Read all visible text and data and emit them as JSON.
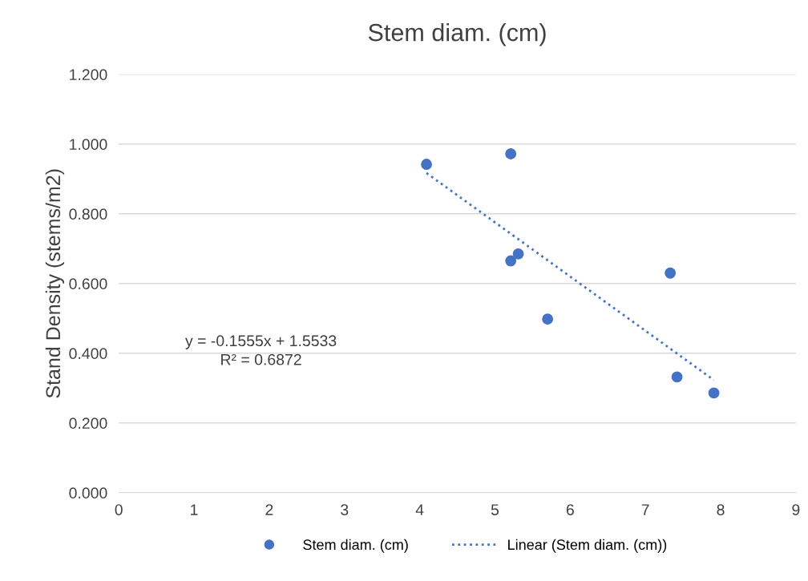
{
  "chart_data": {
    "type": "scatter",
    "title": "Stem diam. (cm)",
    "ylabel": "Stand Density (stems/m2)",
    "series": [
      {
        "name": "Stem diam. (cm)",
        "color": "#4472c4",
        "marker": "circle",
        "x": [
          4.09,
          5.21,
          5.21,
          5.31,
          5.7,
          7.33,
          7.42,
          7.91
        ],
        "values": [
          0.942,
          0.972,
          0.665,
          0.685,
          0.498,
          0.63,
          0.332,
          0.286
        ]
      },
      {
        "name": "Linear (Stem diam. (cm))",
        "type": "line",
        "color": "#4472c4",
        "line_style": "dotted",
        "marker": "none",
        "x": [
          4.09,
          7.91
        ],
        "values": [
          0.917,
          0.323
        ]
      }
    ],
    "xlim": [
      0,
      9
    ],
    "xticks": [
      0,
      1,
      2,
      3,
      4,
      5,
      6,
      7,
      8,
      9
    ],
    "ylim": [
      0,
      1.2
    ],
    "yticks": [
      {
        "value": 0,
        "label": "0.000"
      },
      {
        "value": 0.2,
        "label": "0.200"
      },
      {
        "value": 0.4,
        "label": "0.400"
      },
      {
        "value": 0.6,
        "label": "0.600"
      },
      {
        "value": 0.8,
        "label": "0.800"
      },
      {
        "value": 1.0,
        "label": "1.000"
      },
      {
        "value": 1.2,
        "label": "1.200"
      }
    ],
    "grid": "y",
    "legend": "bottom",
    "annotations": [
      "y = -0.1555x + 1.5533",
      "R² = 0.6872"
    ]
  }
}
